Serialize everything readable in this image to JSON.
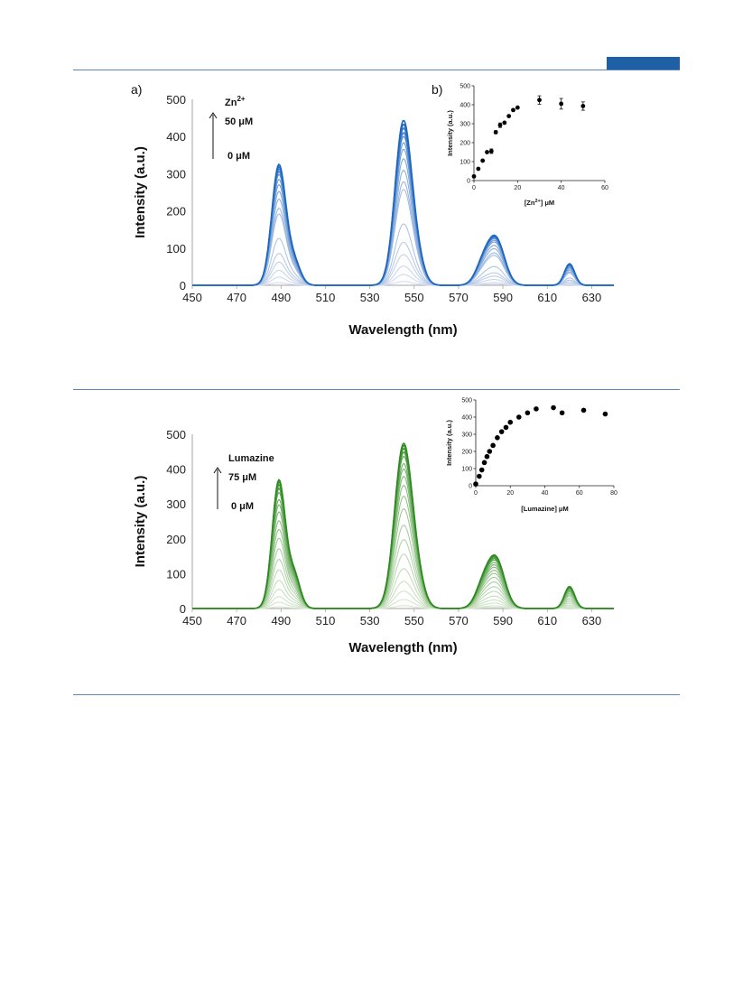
{
  "page": {
    "rules_color": "#5b86b8",
    "corner_box_color": "#1f5fa6"
  },
  "panels": [
    {
      "panel_label": "a)",
      "annotation": {
        "species_base": "Zn",
        "species_sup": "2+",
        "top": "50 μM",
        "bottom": "0 μM"
      }
    },
    {
      "panel_label": "",
      "annotation": {
        "species_base": "Lumazine",
        "species_sup": "",
        "top": "75 μM",
        "bottom": "0 μM"
      }
    }
  ],
  "insets": [
    {
      "panel_label": "b)"
    },
    {
      "panel_label": ""
    }
  ],
  "chart_data": [
    {
      "type": "line",
      "xlabel": "Wavelength (nm)",
      "ylabel": "Intensity (a.u.)",
      "xlim": [
        450,
        640
      ],
      "ylim": [
        0,
        500
      ],
      "xticks": [
        450,
        470,
        490,
        510,
        530,
        550,
        570,
        590,
        610,
        630
      ],
      "yticks": [
        0,
        100,
        200,
        300,
        400,
        500
      ],
      "color_light": "#d3dcee",
      "color_dark": "#1d67c0",
      "peaks": [
        {
          "center": 489,
          "width": 3.2,
          "shoulder": 496,
          "shoulder_ratio": 0.18
        },
        {
          "center": 545,
          "width": 3.7,
          "shoulder": 551,
          "shoulder_ratio": 0.15
        },
        {
          "center": 587,
          "width": 3.8,
          "shoulder": 581,
          "shoulder_ratio": 0.45
        },
        {
          "center": 620,
          "width": 2.3,
          "shoulder": 0,
          "shoulder_ratio": 0
        }
      ],
      "series": [
        {
          "peak_heights": [
            7,
            10,
            3,
            1
          ]
        },
        {
          "peak_heights": [
            22,
            28,
            7,
            3
          ]
        },
        {
          "peak_heights": [
            40,
            50,
            14,
            6
          ]
        },
        {
          "peak_heights": [
            62,
            80,
            22,
            10
          ]
        },
        {
          "peak_heights": [
            85,
            112,
            30,
            14
          ]
        },
        {
          "peak_heights": [
            125,
            160,
            45,
            20
          ]
        },
        {
          "peak_heights": [
            190,
            250,
            72,
            33
          ]
        },
        {
          "peak_heights": [
            205,
            270,
            78,
            36
          ]
        },
        {
          "peak_heights": [
            230,
            300,
            88,
            40
          ]
        },
        {
          "peak_heights": [
            250,
            330,
            96,
            44
          ]
        },
        {
          "peak_heights": [
            268,
            355,
            104,
            47
          ]
        },
        {
          "peak_heights": [
            282,
            372,
            108,
            50
          ]
        },
        {
          "peak_heights": [
            295,
            388,
            112,
            52
          ]
        },
        {
          "peak_heights": [
            303,
            398,
            115,
            54
          ]
        },
        {
          "peak_heights": [
            310,
            410,
            117,
            56
          ]
        },
        {
          "peak_heights": [
            316,
            420,
            118,
            57
          ]
        },
        {
          "peak_heights": [
            322,
            430,
            120,
            58
          ]
        }
      ]
    },
    {
      "type": "scatter",
      "xlabel_base": "[Zn",
      "xlabel_sup": "2+",
      "xlabel_tail": "] μM",
      "ylabel": "Intensity (a.u.)",
      "xlim": [
        0,
        60
      ],
      "ylim": [
        0,
        500
      ],
      "xticks": [
        0,
        20,
        40,
        60
      ],
      "yticks": [
        0,
        100,
        200,
        300,
        400,
        500
      ],
      "points": [
        {
          "x": 0,
          "y": 22,
          "err": 0
        },
        {
          "x": 2,
          "y": 62,
          "err": 0
        },
        {
          "x": 4,
          "y": 105,
          "err": 0
        },
        {
          "x": 6,
          "y": 150,
          "err": 0
        },
        {
          "x": 8,
          "y": 155,
          "err": 12
        },
        {
          "x": 10,
          "y": 255,
          "err": 8
        },
        {
          "x": 12,
          "y": 292,
          "err": 12
        },
        {
          "x": 14,
          "y": 305,
          "err": 0
        },
        {
          "x": 16,
          "y": 340,
          "err": 0
        },
        {
          "x": 18,
          "y": 372,
          "err": 0
        },
        {
          "x": 20,
          "y": 385,
          "err": 0
        },
        {
          "x": 30,
          "y": 425,
          "err": 22
        },
        {
          "x": 40,
          "y": 405,
          "err": 28
        },
        {
          "x": 50,
          "y": 393,
          "err": 22
        }
      ]
    },
    {
      "type": "line",
      "xlabel": "Wavelength (nm)",
      "ylabel": "Intensity (a.u.)",
      "xlim": [
        450,
        640
      ],
      "ylim": [
        0,
        500
      ],
      "xticks": [
        450,
        470,
        490,
        510,
        530,
        550,
        570,
        590,
        610,
        630
      ],
      "yticks": [
        0,
        100,
        200,
        300,
        400,
        500
      ],
      "color_light": "#d8e8d0",
      "color_dark": "#2e8b22",
      "peaks": [
        {
          "center": 489,
          "width": 3.0,
          "shoulder": 496,
          "shoulder_ratio": 0.25
        },
        {
          "center": 545,
          "width": 3.9,
          "shoulder": 551,
          "shoulder_ratio": 0.16
        },
        {
          "center": 587,
          "width": 3.8,
          "shoulder": 581,
          "shoulder_ratio": 0.45
        },
        {
          "center": 620,
          "width": 2.3,
          "shoulder": 0,
          "shoulder_ratio": 0
        }
      ],
      "series": [
        {
          "peak_heights": [
            5,
            8,
            3,
            1
          ]
        },
        {
          "peak_heights": [
            18,
            25,
            7,
            3
          ]
        },
        {
          "peak_heights": [
            34,
            48,
            14,
            6
          ]
        },
        {
          "peak_heights": [
            55,
            75,
            22,
            10
          ]
        },
        {
          "peak_heights": [
            80,
            110,
            32,
            15
          ]
        },
        {
          "peak_heights": [
            110,
            150,
            44,
            20
          ]
        },
        {
          "peak_heights": [
            140,
            190,
            56,
            25
          ]
        },
        {
          "peak_heights": [
            170,
            230,
            68,
            30
          ]
        },
        {
          "peak_heights": [
            200,
            275,
            80,
            36
          ]
        },
        {
          "peak_heights": [
            225,
            310,
            90,
            40
          ]
        },
        {
          "peak_heights": [
            250,
            340,
            98,
            44
          ]
        },
        {
          "peak_heights": [
            275,
            365,
            106,
            48
          ]
        },
        {
          "peak_heights": [
            295,
            385,
            112,
            51
          ]
        },
        {
          "peak_heights": [
            310,
            400,
            118,
            54
          ]
        },
        {
          "peak_heights": [
            330,
            420,
            124,
            57
          ]
        },
        {
          "peak_heights": [
            342,
            432,
            128,
            59
          ]
        },
        {
          "peak_heights": [
            352,
            442,
            132,
            61
          ]
        },
        {
          "peak_heights": [
            360,
            450,
            135,
            62
          ]
        },
        {
          "peak_heights": [
            366,
            456,
            137,
            63
          ]
        }
      ]
    },
    {
      "type": "scatter",
      "xlabel_base": "[Lumazine] μM",
      "xlabel_sup": "",
      "xlabel_tail": "",
      "ylabel": "Intensity (a.u.)",
      "xlim": [
        0,
        80
      ],
      "ylim": [
        0,
        500
      ],
      "xticks": [
        0,
        20,
        40,
        60,
        80
      ],
      "yticks": [
        0,
        100,
        200,
        300,
        400,
        500
      ],
      "points": [
        {
          "x": 0,
          "y": 10,
          "err": 0
        },
        {
          "x": 2,
          "y": 55,
          "err": 0
        },
        {
          "x": 3.5,
          "y": 92,
          "err": 0
        },
        {
          "x": 5,
          "y": 135,
          "err": 0
        },
        {
          "x": 6.5,
          "y": 170,
          "err": 0
        },
        {
          "x": 8,
          "y": 200,
          "err": 0
        },
        {
          "x": 10,
          "y": 235,
          "err": 0
        },
        {
          "x": 12.5,
          "y": 280,
          "err": 0
        },
        {
          "x": 15,
          "y": 315,
          "err": 0
        },
        {
          "x": 17.5,
          "y": 340,
          "err": 0
        },
        {
          "x": 20,
          "y": 370,
          "err": 0
        },
        {
          "x": 25,
          "y": 400,
          "err": 0
        },
        {
          "x": 30,
          "y": 425,
          "err": 0
        },
        {
          "x": 35,
          "y": 448,
          "err": 0
        },
        {
          "x": 45,
          "y": 455,
          "err": 0
        },
        {
          "x": 50,
          "y": 425,
          "err": 0
        },
        {
          "x": 62.5,
          "y": 440,
          "err": 0
        },
        {
          "x": 75,
          "y": 418,
          "err": 0
        }
      ]
    }
  ]
}
